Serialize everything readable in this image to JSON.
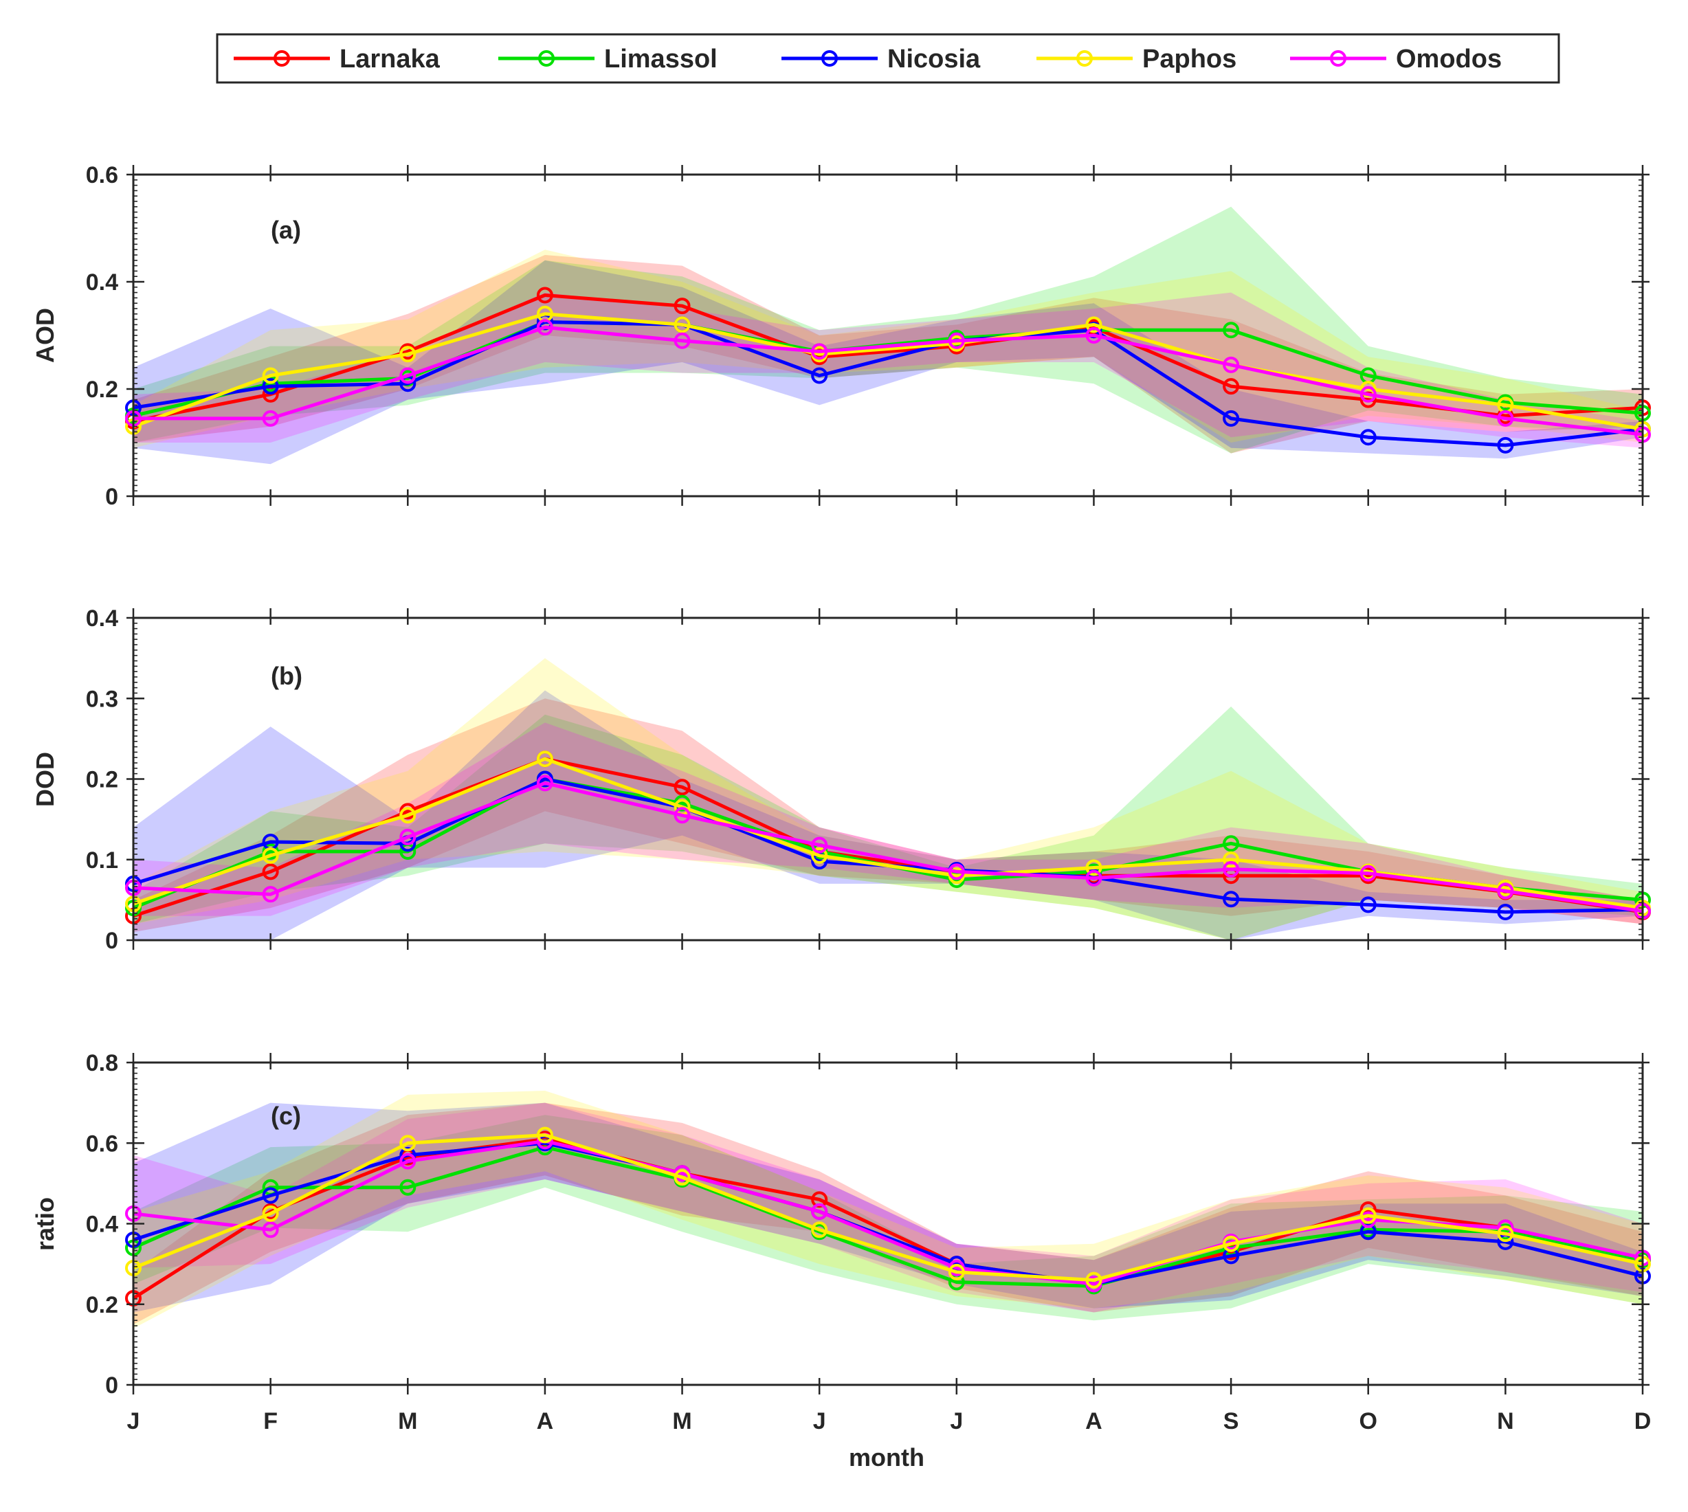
{
  "chart_data": {
    "type": "line",
    "xlabel": "month",
    "categories": [
      "J",
      "F",
      "M",
      "A",
      "M",
      "J",
      "J",
      "A",
      "S",
      "O",
      "N",
      "D"
    ],
    "legend": {
      "position": "top-center",
      "entries": [
        "Larnaka",
        "Limassol",
        "Nicosia",
        "Paphos",
        "Omodos"
      ]
    },
    "colors": {
      "Larnaka": "#ff0000",
      "Limassol": "#00e000",
      "Nicosia": "#0000ff",
      "Paphos": "#ffee00",
      "Omodos": "#ff00ff"
    },
    "panels": [
      {
        "label": "(a)",
        "ylabel": "AOD",
        "ylim": [
          0,
          0.6
        ],
        "yticks": [
          0,
          0.2,
          0.4,
          0.6
        ],
        "ytick_labels": [
          "0",
          "0.2",
          "0.4",
          "0.6"
        ],
        "series": [
          {
            "name": "Larnaka",
            "values": [
              0.14,
              0.19,
              0.27,
              0.375,
              0.355,
              0.26,
              0.28,
              0.315,
              0.205,
              0.18,
              0.15,
              0.165
            ],
            "band_lower": [
              0.1,
              0.13,
              0.2,
              0.3,
              0.28,
              0.22,
              0.24,
              0.26,
              0.08,
              0.14,
              0.12,
              0.13
            ],
            "band_upper": [
              0.18,
              0.26,
              0.34,
              0.45,
              0.43,
              0.3,
              0.32,
              0.37,
              0.33,
              0.23,
              0.19,
              0.2
            ]
          },
          {
            "name": "Limassol",
            "values": [
              0.15,
              0.21,
              0.22,
              0.325,
              0.32,
              0.27,
              0.295,
              0.31,
              0.31,
              0.225,
              0.175,
              0.155
            ],
            "band_lower": [
              0.1,
              0.15,
              0.17,
              0.23,
              0.23,
              0.22,
              0.24,
              0.21,
              0.08,
              0.16,
              0.13,
              0.12
            ],
            "band_upper": [
              0.2,
              0.28,
              0.28,
              0.44,
              0.41,
              0.31,
              0.34,
              0.41,
              0.54,
              0.28,
              0.22,
              0.19
            ]
          },
          {
            "name": "Nicosia",
            "values": [
              0.165,
              0.205,
              0.21,
              0.325,
              0.32,
              0.225,
              0.29,
              0.31,
              0.145,
              0.11,
              0.095,
              0.125
            ],
            "band_lower": [
              0.09,
              0.06,
              0.18,
              0.21,
              0.25,
              0.17,
              0.25,
              0.26,
              0.09,
              0.08,
              0.07,
              0.11
            ],
            "band_upper": [
              0.24,
              0.35,
              0.24,
              0.44,
              0.39,
              0.28,
              0.33,
              0.36,
              0.2,
              0.14,
              0.12,
              0.14
            ]
          },
          {
            "name": "Paphos",
            "values": [
              0.13,
              0.225,
              0.265,
              0.34,
              0.32,
              0.265,
              0.285,
              0.32,
              0.245,
              0.2,
              0.17,
              0.125
            ],
            "band_lower": [
              0.09,
              0.15,
              0.2,
              0.24,
              0.25,
              0.23,
              0.24,
              0.26,
              0.1,
              0.15,
              0.13,
              0.1
            ],
            "band_upper": [
              0.17,
              0.31,
              0.33,
              0.46,
              0.4,
              0.3,
              0.33,
              0.38,
              0.42,
              0.26,
              0.22,
              0.16
            ]
          },
          {
            "name": "Omodos",
            "values": [
              0.145,
              0.145,
              0.225,
              0.315,
              0.29,
              0.27,
              0.29,
              0.3,
              0.245,
              0.19,
              0.145,
              0.115
            ],
            "band_lower": [
              0.1,
              0.1,
              0.18,
              0.25,
              0.23,
              0.23,
              0.25,
              0.25,
              0.11,
              0.14,
              0.11,
              0.09
            ],
            "band_upper": [
              0.19,
              0.2,
              0.27,
              0.38,
              0.35,
              0.31,
              0.33,
              0.35,
              0.38,
              0.24,
              0.18,
              0.14
            ]
          }
        ]
      },
      {
        "label": "(b)",
        "ylabel": "DOD",
        "ylim": [
          0,
          0.4
        ],
        "yticks": [
          0,
          0.1,
          0.2,
          0.3,
          0.4
        ],
        "ytick_labels": [
          "0",
          "0.1",
          "0.2",
          "0.3",
          "0.4"
        ],
        "series": [
          {
            "name": "Larnaka",
            "values": [
              0.03,
              0.085,
              0.16,
              0.225,
              0.19,
              0.11,
              0.085,
              0.08,
              0.08,
              0.08,
              0.06,
              0.035
            ],
            "band_lower": [
              0.01,
              0.04,
              0.09,
              0.16,
              0.12,
              0.08,
              0.07,
              0.05,
              0.03,
              0.05,
              0.04,
              0.02
            ],
            "band_upper": [
              0.05,
              0.13,
              0.23,
              0.3,
              0.26,
              0.14,
              0.1,
              0.11,
              0.13,
              0.11,
              0.08,
              0.05
            ]
          },
          {
            "name": "Limassol",
            "values": [
              0.04,
              0.11,
              0.11,
              0.2,
              0.17,
              0.11,
              0.075,
              0.085,
              0.12,
              0.085,
              0.065,
              0.05
            ],
            "band_lower": [
              0.02,
              0.06,
              0.08,
              0.12,
              0.11,
              0.08,
              0.06,
              0.04,
              0.0,
              0.05,
              0.04,
              0.03
            ],
            "band_upper": [
              0.06,
              0.16,
              0.14,
              0.28,
              0.23,
              0.14,
              0.09,
              0.13,
              0.29,
              0.12,
              0.09,
              0.07
            ]
          },
          {
            "name": "Nicosia",
            "values": [
              0.07,
              0.122,
              0.12,
              0.2,
              0.165,
              0.098,
              0.087,
              0.078,
              0.051,
              0.044,
              0.035,
              0.038
            ],
            "band_lower": [
              0.0,
              0.0,
              0.09,
              0.09,
              0.13,
              0.07,
              0.07,
              0.05,
              0.0,
              0.03,
              0.02,
              0.03
            ],
            "band_upper": [
              0.14,
              0.265,
              0.15,
              0.31,
              0.2,
              0.13,
              0.1,
              0.11,
              0.1,
              0.06,
              0.05,
              0.05
            ]
          },
          {
            "name": "Paphos",
            "values": [
              0.045,
              0.105,
              0.155,
              0.225,
              0.165,
              0.105,
              0.08,
              0.09,
              0.1,
              0.085,
              0.065,
              0.04
            ],
            "band_lower": [
              0.02,
              0.05,
              0.1,
              0.11,
              0.1,
              0.08,
              0.06,
              0.04,
              0.0,
              0.05,
              0.04,
              0.02
            ],
            "band_upper": [
              0.07,
              0.16,
              0.21,
              0.35,
              0.23,
              0.13,
              0.1,
              0.14,
              0.21,
              0.12,
              0.09,
              0.06
            ]
          },
          {
            "name": "Omodos",
            "values": [
              0.065,
              0.057,
              0.128,
              0.195,
              0.155,
              0.118,
              0.085,
              0.077,
              0.088,
              0.083,
              0.061,
              0.036
            ],
            "band_lower": [
              0.03,
              0.03,
              0.09,
              0.12,
              0.1,
              0.09,
              0.07,
              0.05,
              0.04,
              0.05,
              0.04,
              0.02
            ],
            "band_upper": [
              0.1,
              0.09,
              0.17,
              0.27,
              0.21,
              0.14,
              0.1,
              0.1,
              0.14,
              0.12,
              0.08,
              0.05
            ]
          }
        ]
      },
      {
        "label": "(c)",
        "ylabel": "ratio",
        "ylim": [
          0,
          0.8
        ],
        "yticks": [
          0,
          0.2,
          0.4,
          0.6,
          0.8
        ],
        "ytick_labels": [
          "0",
          "0.2",
          "0.4",
          "0.6",
          "0.8"
        ],
        "series": [
          {
            "name": "Larnaka",
            "values": [
              0.215,
              0.43,
              0.565,
              0.61,
              0.525,
              0.46,
              0.3,
              0.25,
              0.33,
              0.435,
              0.39,
              0.31
            ],
            "band_lower": [
              0.15,
              0.33,
              0.45,
              0.52,
              0.42,
              0.38,
              0.24,
              0.18,
              0.22,
              0.34,
              0.28,
              0.22
            ],
            "band_upper": [
              0.28,
              0.53,
              0.67,
              0.7,
              0.65,
              0.53,
              0.35,
              0.31,
              0.44,
              0.53,
              0.47,
              0.38
            ]
          },
          {
            "name": "Limassol",
            "values": [
              0.34,
              0.49,
              0.49,
              0.59,
              0.51,
              0.38,
              0.255,
              0.245,
              0.34,
              0.385,
              0.38,
              0.31
            ],
            "band_lower": [
              0.25,
              0.39,
              0.38,
              0.49,
              0.38,
              0.28,
              0.2,
              0.16,
              0.19,
              0.3,
              0.26,
              0.2
            ],
            "band_upper": [
              0.43,
              0.59,
              0.6,
              0.67,
              0.62,
              0.48,
              0.3,
              0.32,
              0.45,
              0.46,
              0.47,
              0.43
            ]
          },
          {
            "name": "Nicosia",
            "values": [
              0.36,
              0.47,
              0.57,
              0.6,
              0.525,
              0.43,
              0.3,
              0.25,
              0.32,
              0.38,
              0.355,
              0.27
            ],
            "band_lower": [
              0.18,
              0.25,
              0.45,
              0.51,
              0.43,
              0.35,
              0.25,
              0.19,
              0.21,
              0.31,
              0.27,
              0.22
            ],
            "band_upper": [
              0.55,
              0.7,
              0.68,
              0.7,
              0.6,
              0.51,
              0.35,
              0.31,
              0.43,
              0.45,
              0.45,
              0.33
            ]
          },
          {
            "name": "Omodos",
            "values": [
              0.425,
              0.385,
              0.555,
              0.605,
              0.525,
              0.43,
              0.29,
              0.25,
              0.355,
              0.41,
              0.39,
              0.315
            ],
            "band_lower": [
              0.29,
              0.3,
              0.44,
              0.51,
              0.43,
              0.35,
              0.23,
              0.18,
              0.25,
              0.32,
              0.28,
              0.23
            ],
            "band_upper": [
              0.57,
              0.47,
              0.66,
              0.7,
              0.62,
              0.51,
              0.35,
              0.32,
              0.46,
              0.5,
              0.51,
              0.4
            ]
          },
          {
            "name": "Paphos",
            "values": [
              0.29,
              0.425,
              0.6,
              0.62,
              0.515,
              0.385,
              0.28,
              0.26,
              0.35,
              0.42,
              0.375,
              0.3
            ],
            "band_lower": [
              0.14,
              0.32,
              0.47,
              0.53,
              0.41,
              0.3,
              0.22,
              0.19,
              0.23,
              0.32,
              0.26,
              0.2
            ],
            "band_upper": [
              0.43,
              0.53,
              0.72,
              0.73,
              0.62,
              0.48,
              0.34,
              0.35,
              0.46,
              0.52,
              0.49,
              0.4
            ]
          }
        ]
      }
    ]
  }
}
